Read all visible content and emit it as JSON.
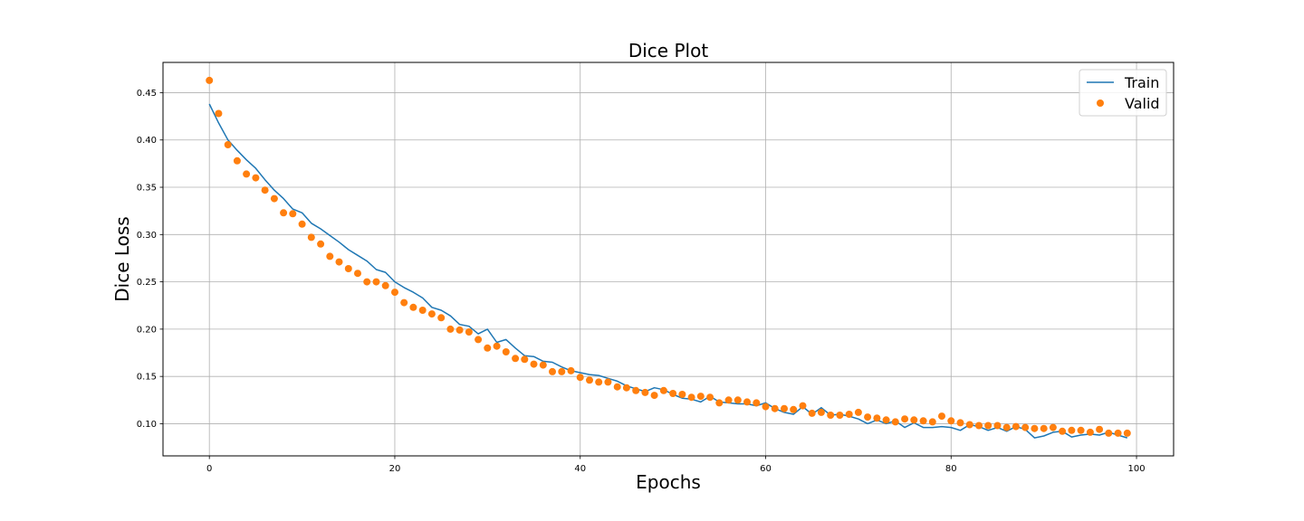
{
  "chart_data": {
    "type": "line",
    "title": "Dice Plot",
    "xlabel": "Epochs",
    "ylabel": "Dice Loss",
    "xlim": [
      -5,
      104
    ],
    "ylim": [
      0.066,
      0.482
    ],
    "xticks": [
      0,
      20,
      40,
      60,
      80,
      100
    ],
    "yticks": [
      0.1,
      0.15,
      0.2,
      0.25,
      0.3,
      0.35,
      0.4,
      0.45
    ],
    "grid": true,
    "legend_position": "top-right",
    "series": [
      {
        "name": "Train",
        "style": "line",
        "color": "#1f77b4",
        "x": [
          0,
          1,
          2,
          3,
          4,
          5,
          6,
          7,
          8,
          9,
          10,
          11,
          12,
          13,
          14,
          15,
          16,
          17,
          18,
          19,
          20,
          21,
          22,
          23,
          24,
          25,
          26,
          27,
          28,
          29,
          30,
          31,
          32,
          33,
          34,
          35,
          36,
          37,
          38,
          39,
          40,
          41,
          42,
          43,
          44,
          45,
          46,
          47,
          48,
          49,
          50,
          51,
          52,
          53,
          54,
          55,
          56,
          57,
          58,
          59,
          60,
          61,
          62,
          63,
          64,
          65,
          66,
          67,
          68,
          69,
          70,
          71,
          72,
          73,
          74,
          75,
          76,
          77,
          78,
          79,
          80,
          81,
          82,
          83,
          84,
          85,
          86,
          87,
          88,
          89,
          90,
          91,
          92,
          93,
          94,
          95,
          96,
          97,
          98,
          99
        ],
        "y": [
          0.438,
          0.418,
          0.4,
          0.389,
          0.379,
          0.37,
          0.358,
          0.347,
          0.338,
          0.327,
          0.323,
          0.312,
          0.306,
          0.299,
          0.292,
          0.284,
          0.278,
          0.272,
          0.263,
          0.26,
          0.25,
          0.244,
          0.239,
          0.233,
          0.223,
          0.22,
          0.214,
          0.205,
          0.203,
          0.195,
          0.2,
          0.186,
          0.189,
          0.18,
          0.172,
          0.171,
          0.166,
          0.165,
          0.16,
          0.156,
          0.154,
          0.152,
          0.151,
          0.148,
          0.145,
          0.14,
          0.137,
          0.134,
          0.138,
          0.136,
          0.131,
          0.127,
          0.126,
          0.123,
          0.129,
          0.123,
          0.122,
          0.121,
          0.121,
          0.119,
          0.122,
          0.116,
          0.112,
          0.11,
          0.118,
          0.11,
          0.117,
          0.109,
          0.11,
          0.108,
          0.105,
          0.1,
          0.104,
          0.1,
          0.103,
          0.096,
          0.101,
          0.096,
          0.096,
          0.097,
          0.096,
          0.093,
          0.099,
          0.097,
          0.093,
          0.096,
          0.092,
          0.097,
          0.094,
          0.085,
          0.087,
          0.091,
          0.092,
          0.086,
          0.088,
          0.089,
          0.088,
          0.091,
          0.088,
          0.085
        ]
      },
      {
        "name": "Valid",
        "style": "scatter",
        "color": "#ff7f0e",
        "x": [
          0,
          1,
          2,
          3,
          4,
          5,
          6,
          7,
          8,
          9,
          10,
          11,
          12,
          13,
          14,
          15,
          16,
          17,
          18,
          19,
          20,
          21,
          22,
          23,
          24,
          25,
          26,
          27,
          28,
          29,
          30,
          31,
          32,
          33,
          34,
          35,
          36,
          37,
          38,
          39,
          40,
          41,
          42,
          43,
          44,
          45,
          46,
          47,
          48,
          49,
          50,
          51,
          52,
          53,
          54,
          55,
          56,
          57,
          58,
          59,
          60,
          61,
          62,
          63,
          64,
          65,
          66,
          67,
          68,
          69,
          70,
          71,
          72,
          73,
          74,
          75,
          76,
          77,
          78,
          79,
          80,
          81,
          82,
          83,
          84,
          85,
          86,
          87,
          88,
          89,
          90,
          91,
          92,
          93,
          94,
          95,
          96,
          97,
          98,
          99
        ],
        "y": [
          0.463,
          0.428,
          0.395,
          0.378,
          0.364,
          0.36,
          0.347,
          0.338,
          0.323,
          0.322,
          0.311,
          0.297,
          0.29,
          0.277,
          0.271,
          0.264,
          0.259,
          0.25,
          0.25,
          0.246,
          0.239,
          0.228,
          0.223,
          0.22,
          0.216,
          0.212,
          0.2,
          0.199,
          0.197,
          0.189,
          0.18,
          0.182,
          0.176,
          0.169,
          0.168,
          0.163,
          0.162,
          0.155,
          0.155,
          0.156,
          0.149,
          0.146,
          0.144,
          0.144,
          0.139,
          0.138,
          0.135,
          0.133,
          0.13,
          0.135,
          0.132,
          0.131,
          0.128,
          0.129,
          0.128,
          0.122,
          0.125,
          0.125,
          0.123,
          0.122,
          0.118,
          0.116,
          0.116,
          0.115,
          0.119,
          0.111,
          0.112,
          0.109,
          0.109,
          0.11,
          0.112,
          0.107,
          0.106,
          0.104,
          0.102,
          0.105,
          0.104,
          0.103,
          0.102,
          0.108,
          0.103,
          0.101,
          0.099,
          0.098,
          0.098,
          0.098,
          0.096,
          0.097,
          0.096,
          0.095,
          0.095,
          0.096,
          0.092,
          0.093,
          0.093,
          0.091,
          0.094,
          0.09,
          0.09,
          0.09
        ]
      }
    ]
  }
}
